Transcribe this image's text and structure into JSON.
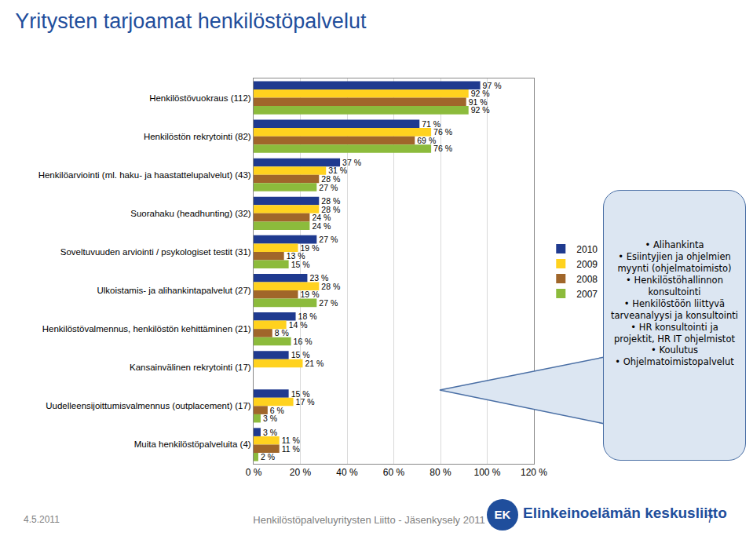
{
  "chart_data": {
    "type": "bar",
    "title": "Yritysten tarjoamat henkilöstöpalvelut",
    "orientation": "horizontal",
    "categories": [
      "Henkilöstövuokraus (112)",
      "Henkilöstön rekrytointi (82)",
      "Henkilöarviointi (ml. haku- ja haastattelupalvelut) (43)",
      "Suorahaku (headhunting) (32)",
      "Soveltuvuuden arviointi / psykologiset testit (31)",
      "Ulkoistamis- ja alihankintapalvelut (27)",
      "Henkilöstövalmennus, henkilöstön kehittäminen (21)",
      "Kansainvälinen rekrytointi (17)",
      "Uudelleensijoittumisvalmennus (outplacement) (17)",
      "Muita henkilöstöpalveluita (4)"
    ],
    "series": [
      {
        "name": "2010",
        "color": "#1f3a8f",
        "values": [
          97,
          71,
          37,
          28,
          27,
          23,
          18,
          15,
          15,
          3
        ],
        "value_labels": [
          "97 %",
          "71 %",
          "37 %",
          "28 %",
          "27 %",
          "23 %",
          "18 %",
          "15 %",
          "15 %",
          "3 %"
        ]
      },
      {
        "name": "2009",
        "color": "#ffd21f",
        "values": [
          92,
          76,
          31,
          28,
          19,
          28,
          14,
          21,
          17,
          11
        ],
        "value_labels": [
          "92 %",
          "76 %",
          "31 %",
          "28 %",
          "19 %",
          "28 %",
          "14 %",
          "21 %",
          "17 %",
          "11 %"
        ]
      },
      {
        "name": "2008",
        "color": "#a0662a",
        "values": [
          91,
          69,
          28,
          24,
          13,
          19,
          8,
          null,
          6,
          11
        ],
        "value_labels": [
          "91 %",
          "69 %",
          "28 %",
          "24 %",
          "13 %",
          "19 %",
          "8 %",
          null,
          "6 %",
          "11 %"
        ]
      },
      {
        "name": "2007",
        "color": "#8cbb3c",
        "values": [
          92,
          76,
          27,
          24,
          15,
          27,
          16,
          null,
          3,
          2
        ],
        "value_labels": [
          "92 %",
          "76 %",
          "27 %",
          "24 %",
          "15 %",
          "27 %",
          "16 %",
          null,
          "3 %",
          "2 %"
        ]
      }
    ],
    "xlim": [
      0,
      120
    ],
    "xticks": [
      {
        "value": 0,
        "label": "0 %"
      },
      {
        "value": 20,
        "label": "20 %"
      },
      {
        "value": 40,
        "label": "40 %"
      },
      {
        "value": 60,
        "label": "60 %"
      },
      {
        "value": 80,
        "label": "80 %"
      },
      {
        "value": 100,
        "label": "100 %"
      },
      {
        "value": 120,
        "label": "120 %"
      }
    ],
    "grid": true,
    "legend": "right",
    "data_labels": true,
    "callout": [
      "Alihankinta",
      "Esiintyjien ja ohjelmien myynti (ohjelmatoimisto)",
      "Henkilöstöhallinnon konsultointi",
      "Henkilöstöön liittyvä tarveanalyysi ja konsultointi",
      "HR konsultointi ja projektit, HR IT ohjelmistot",
      "Koulutus",
      "Ohjelmatoimistopalvelut"
    ],
    "footer": {
      "date": "4.5.2011",
      "source": "Henkilöstöpalveluyritysten Liitto - Jäsenkysely 2011",
      "logo": "EK",
      "organization": "Elinkeinoelämän keskusliitto",
      "page": 7
    }
  }
}
